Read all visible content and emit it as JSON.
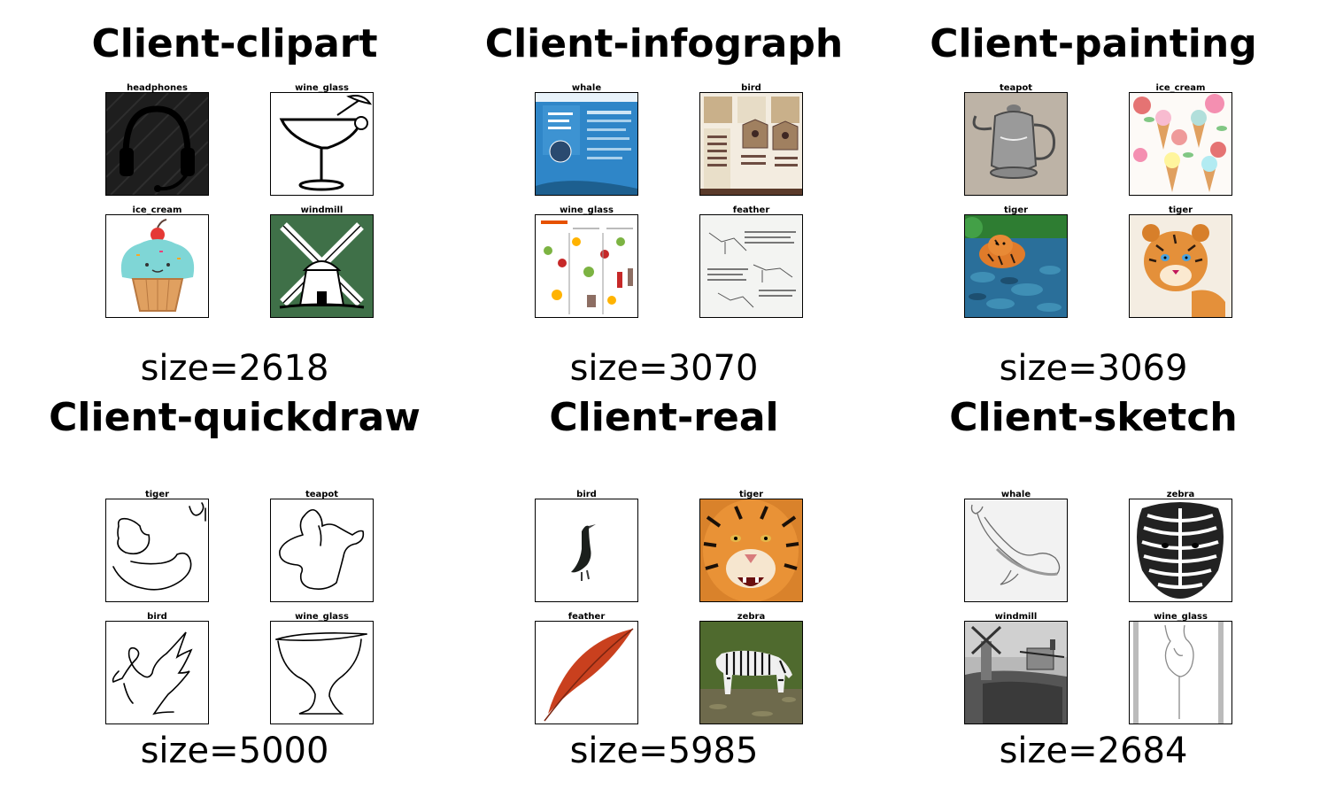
{
  "panels": [
    {
      "title": "Client-clipart",
      "size": "size=2618",
      "thumbs": [
        {
          "label": "headphones",
          "kind": "headphones"
        },
        {
          "label": "wine_glass",
          "kind": "margarita"
        },
        {
          "label": "ice_cream",
          "kind": "icecream-clip"
        },
        {
          "label": "windmill",
          "kind": "windmill-clip"
        }
      ]
    },
    {
      "title": "Client-infograph",
      "size": "size=3070",
      "thumbs": [
        {
          "label": "whale",
          "kind": "info-blue"
        },
        {
          "label": "bird",
          "kind": "info-birdhouse"
        },
        {
          "label": "wine_glass",
          "kind": "info-food"
        },
        {
          "label": "feather",
          "kind": "info-diagram"
        }
      ]
    },
    {
      "title": "Client-painting",
      "size": "size=3069",
      "thumbs": [
        {
          "label": "teapot",
          "kind": "teapot-paint"
        },
        {
          "label": "ice_cream",
          "kind": "icecream-pattern"
        },
        {
          "label": "tiger",
          "kind": "tiger-water"
        },
        {
          "label": "tiger",
          "kind": "tiger-cub"
        }
      ]
    },
    {
      "title": "Client-quickdraw",
      "size": "size=5000",
      "thumbs": [
        {
          "label": "tiger",
          "kind": "qd-tiger"
        },
        {
          "label": "teapot",
          "kind": "qd-teapot"
        },
        {
          "label": "bird",
          "kind": "qd-bird"
        },
        {
          "label": "wine_glass",
          "kind": "qd-glass"
        }
      ]
    },
    {
      "title": "Client-real",
      "size": "size=5985",
      "thumbs": [
        {
          "label": "bird",
          "kind": "real-bird"
        },
        {
          "label": "tiger",
          "kind": "real-tiger"
        },
        {
          "label": "feather",
          "kind": "real-feather"
        },
        {
          "label": "zebra",
          "kind": "real-zebra"
        }
      ]
    },
    {
      "title": "Client-sketch",
      "size": "size=2684",
      "thumbs": [
        {
          "label": "whale",
          "kind": "sk-whale"
        },
        {
          "label": "zebra",
          "kind": "sk-zebra"
        },
        {
          "label": "windmill",
          "kind": "sk-windmill"
        },
        {
          "label": "wine_glass",
          "kind": "sk-glass"
        }
      ]
    }
  ]
}
